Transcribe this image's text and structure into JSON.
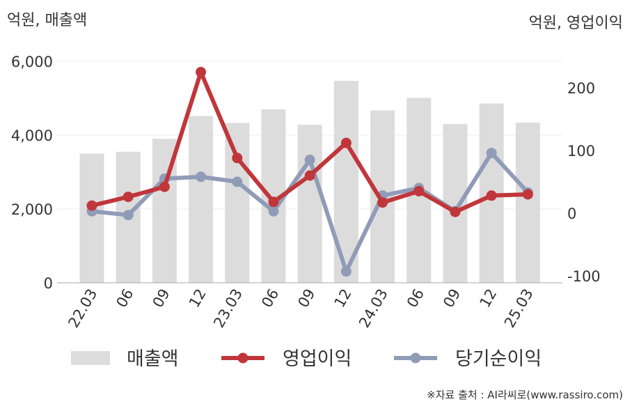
{
  "chart_data": {
    "type": "bar+line",
    "left_axis_label": "억원, 매출액",
    "right_axis_label": "억원, 영업이익",
    "categories": [
      "22.03",
      "06",
      "09",
      "12",
      "23.03",
      "06",
      "09",
      "12",
      "24.03",
      "06",
      "09",
      "12",
      "25.03"
    ],
    "left_ylim": [
      0,
      6000
    ],
    "left_ticks": [
      "0",
      "2,000",
      "4,000",
      "6,000"
    ],
    "left_tick_values": [
      0,
      2000,
      4000,
      6000
    ],
    "right_ylim": [
      -110,
      240
    ],
    "right_ticks": [
      "-100",
      "0",
      "100",
      "200"
    ],
    "right_tick_values": [
      -100,
      0,
      100,
      200
    ],
    "grid": true,
    "legend_position": "bottom",
    "series": [
      {
        "name": "매출액",
        "kind": "bar",
        "axis": "left",
        "color": "#dcdcdc",
        "values": [
          3500,
          3550,
          3900,
          4520,
          4330,
          4700,
          4280,
          5470,
          4670,
          5010,
          4300,
          4860,
          4340
        ]
      },
      {
        "name": "영업이익",
        "kind": "line",
        "axis": "right",
        "color": "#c0363a",
        "values": [
          12,
          26,
          42,
          225,
          88,
          18,
          60,
          112,
          17,
          35,
          2,
          28,
          30
        ]
      },
      {
        "name": "당기순이익",
        "kind": "line",
        "axis": "right",
        "color": "#909cb7",
        "values": [
          3,
          -3,
          55,
          58,
          50,
          3,
          85,
          -93,
          28,
          40,
          3,
          96,
          33
        ]
      }
    ]
  },
  "source_note": "※자료 출처 : AI라씨로(www.rassiro.com)"
}
